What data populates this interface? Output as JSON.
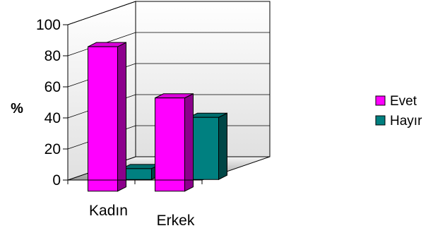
{
  "chart_data": {
    "type": "bar",
    "categories": [
      "Kadın",
      "Erkek"
    ],
    "series": [
      {
        "name": "Evet",
        "values": [
          93,
          60
        ],
        "color": "#ff00ff"
      },
      {
        "name": "Hayır",
        "values": [
          7,
          40
        ],
        "color": "#008080"
      }
    ],
    "ylabel": "%",
    "ylim": [
      0,
      100
    ],
    "yticks": [
      0,
      20,
      40,
      60,
      80,
      100
    ],
    "grid": true,
    "legend": "right",
    "style": "3d-clustered-depth"
  }
}
